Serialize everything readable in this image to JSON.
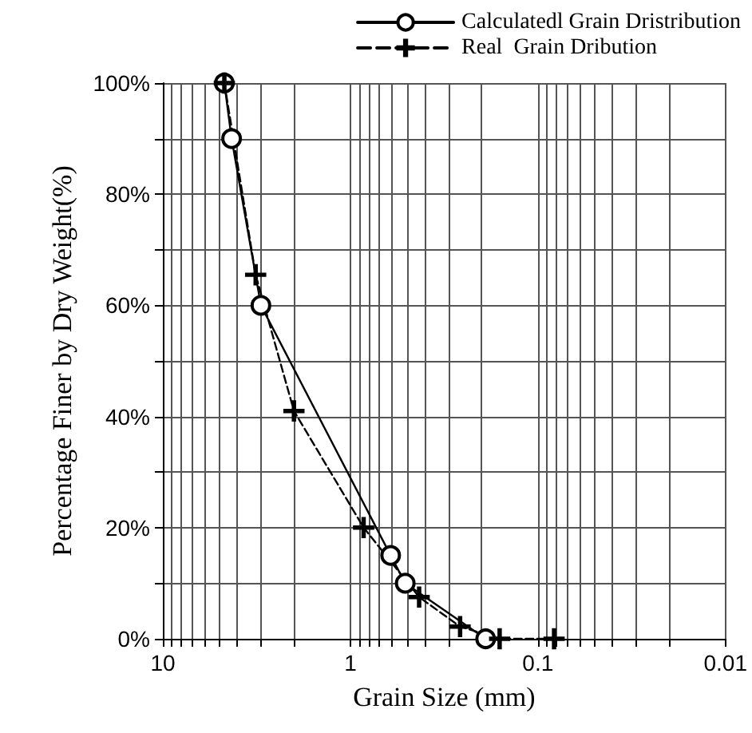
{
  "chart_data": {
    "type": "line",
    "xlabel": "Grain Size (mm)",
    "ylabel": "Percentage Finer by Dry Weight(%)",
    "series": [
      {
        "name": "Calculatedl Grain Dristribution",
        "color": "#000000",
        "marker": "circle",
        "line_style": "solid",
        "x": [
          4.7,
          4.3,
          3.0,
          0.61,
          0.51,
          0.19
        ],
        "values": [
          100,
          90,
          60,
          15,
          10,
          0
        ]
      },
      {
        "name": "Real  Grain Dribution",
        "color": "#000000",
        "marker": "cross",
        "line_style": "dashed",
        "x": [
          4.7,
          3.2,
          2.0,
          0.85,
          0.43,
          0.26,
          0.16,
          0.082
        ],
        "values": [
          100,
          65.5,
          41,
          20,
          7.5,
          2.2,
          0,
          0
        ]
      }
    ],
    "log": "x",
    "xlim": [
      10,
      0.01
    ],
    "xticks": [
      {
        "value": 10,
        "label": "10"
      },
      {
        "value": 9,
        "label": null
      },
      {
        "value": 8,
        "label": null
      },
      {
        "value": 7,
        "label": null
      },
      {
        "value": 6,
        "label": null
      },
      {
        "value": 5,
        "label": null
      },
      {
        "value": 4,
        "label": null
      },
      {
        "value": 3,
        "label": null
      },
      {
        "value": 2,
        "label": null
      },
      {
        "value": 1,
        "label": "1"
      },
      {
        "value": 0.9,
        "label": null
      },
      {
        "value": 0.8,
        "label": null
      },
      {
        "value": 0.7,
        "label": null
      },
      {
        "value": 0.6,
        "label": null
      },
      {
        "value": 0.5,
        "label": null
      },
      {
        "value": 0.4,
        "label": null
      },
      {
        "value": 0.3,
        "label": null
      },
      {
        "value": 0.2,
        "label": null
      },
      {
        "value": 0.1,
        "label": "0.1"
      },
      {
        "value": 0.09,
        "label": null
      },
      {
        "value": 0.08,
        "label": null
      },
      {
        "value": 0.07,
        "label": null
      },
      {
        "value": 0.06,
        "label": null
      },
      {
        "value": 0.05,
        "label": null
      },
      {
        "value": 0.04,
        "label": null
      },
      {
        "value": 0.03,
        "label": null
      },
      {
        "value": 0.02,
        "label": null
      },
      {
        "value": 0.01,
        "label": "0.01"
      }
    ],
    "ylim": [
      0,
      100
    ],
    "yticks": [
      {
        "value": 0,
        "label": "0%"
      },
      {
        "value": 10,
        "label": null
      },
      {
        "value": 20,
        "label": "20%"
      },
      {
        "value": 30,
        "label": null
      },
      {
        "value": 40,
        "label": "40%"
      },
      {
        "value": 50,
        "label": null
      },
      {
        "value": 60,
        "label": "60%"
      },
      {
        "value": 70,
        "label": null
      },
      {
        "value": 80,
        "label": "80%"
      },
      {
        "value": 90,
        "label": null
      },
      {
        "value": 100,
        "label": "100%"
      }
    ],
    "grid": true,
    "legend": "top right"
  }
}
